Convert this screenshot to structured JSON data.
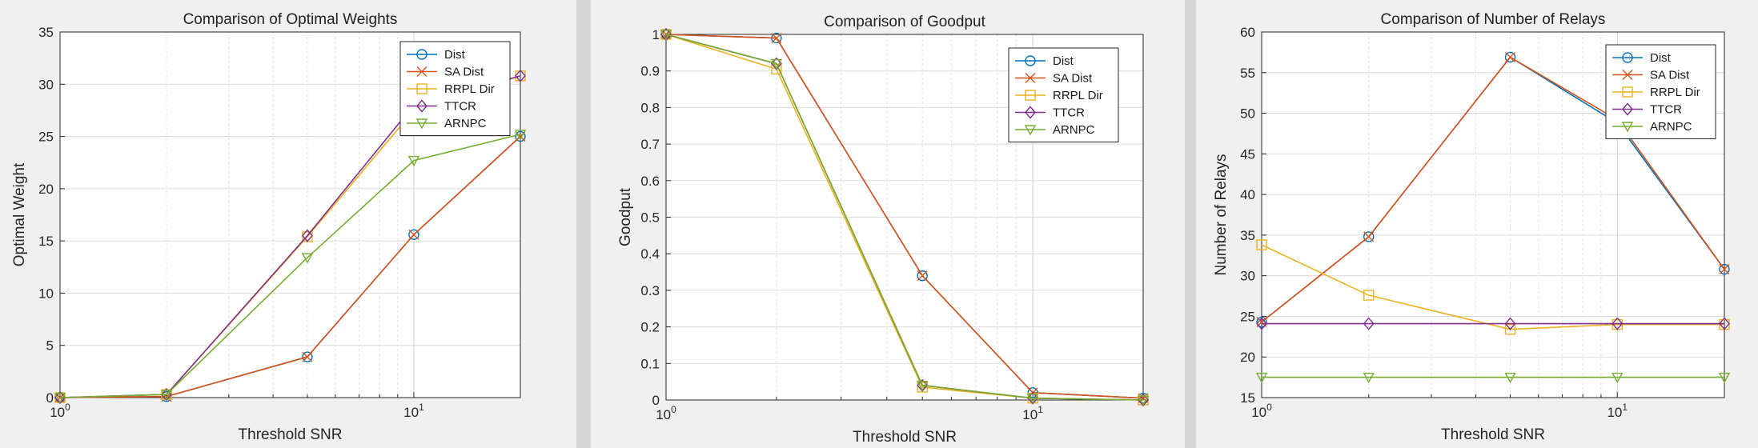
{
  "colors": {
    "Dist": "#0072bd",
    "SA Dist": "#d95319",
    "RRPL Dir": "#edb120",
    "TTCR": "#7e2f8e",
    "ARNPC": "#77ac30"
  },
  "chart_data": [
    {
      "type": "line",
      "title": "Comparison of Optimal Weights",
      "xlabel": "Threshold SNR",
      "ylabel": "Optimal Weight",
      "xscale": "log",
      "xlim": [
        1,
        20
      ],
      "ylim": [
        0,
        35
      ],
      "yticks": [
        0,
        5,
        10,
        15,
        20,
        25,
        30,
        35
      ],
      "grid": true,
      "legend_position": "top-right",
      "x": [
        1,
        2,
        5,
        10,
        20
      ],
      "series": [
        {
          "name": "Dist",
          "marker": "circle",
          "values": [
            0,
            0.1,
            3.9,
            15.6,
            25.0
          ]
        },
        {
          "name": "SA Dist",
          "marker": "x",
          "values": [
            0,
            0.1,
            3.9,
            15.6,
            25.0
          ]
        },
        {
          "name": "RRPL Dir",
          "marker": "square",
          "values": [
            0,
            0.3,
            15.4,
            27.5,
            30.8
          ]
        },
        {
          "name": "TTCR",
          "marker": "diamond",
          "values": [
            0,
            0.3,
            15.5,
            28.0,
            30.8
          ]
        },
        {
          "name": "ARNPC",
          "marker": "triangle-down",
          "values": [
            0,
            0.3,
            13.4,
            22.7,
            25.2
          ]
        }
      ]
    },
    {
      "type": "line",
      "title": "Comparison of Goodput",
      "xlabel": "Threshold SNR",
      "ylabel": "Goodput",
      "xscale": "log",
      "xlim": [
        1,
        20
      ],
      "ylim": [
        0,
        1
      ],
      "yticks": [
        0,
        0.1,
        0.2,
        0.3,
        0.4,
        0.5,
        0.6,
        0.7,
        0.8,
        0.9,
        1
      ],
      "grid": true,
      "legend_position": "top-right",
      "x": [
        1,
        2,
        5,
        10,
        20
      ],
      "series": [
        {
          "name": "Dist",
          "marker": "circle",
          "values": [
            1.0,
            0.99,
            0.34,
            0.02,
            0.005
          ]
        },
        {
          "name": "SA Dist",
          "marker": "x",
          "values": [
            1.0,
            0.99,
            0.34,
            0.02,
            0.005
          ]
        },
        {
          "name": "RRPL Dir",
          "marker": "square",
          "values": [
            1.0,
            0.905,
            0.035,
            0.005,
            0.0
          ]
        },
        {
          "name": "TTCR",
          "marker": "diamond",
          "values": [
            1.0,
            0.92,
            0.04,
            0.005,
            0.0
          ]
        },
        {
          "name": "ARNPC",
          "marker": "triangle-down",
          "values": [
            1.0,
            0.92,
            0.04,
            0.005,
            0.0
          ]
        }
      ]
    },
    {
      "type": "line",
      "title": "Comparison of Number of Relays",
      "xlabel": "Threshold SNR",
      "ylabel": "Number of Relays",
      "xscale": "log",
      "xlim": [
        1,
        20
      ],
      "ylim": [
        15,
        60
      ],
      "yticks": [
        15,
        20,
        25,
        30,
        35,
        40,
        45,
        50,
        55,
        60
      ],
      "grid": true,
      "legend_position": "top-right",
      "x": [
        1,
        2,
        5,
        10,
        20
      ],
      "series": [
        {
          "name": "Dist",
          "marker": "circle",
          "values": [
            24.3,
            34.8,
            56.9,
            48.8,
            30.8
          ]
        },
        {
          "name": "SA Dist",
          "marker": "x",
          "values": [
            24.3,
            34.8,
            56.9,
            49.2,
            30.8
          ]
        },
        {
          "name": "RRPL Dir",
          "marker": "square",
          "values": [
            33.8,
            27.6,
            23.4,
            24.0,
            24.0
          ]
        },
        {
          "name": "TTCR",
          "marker": "diamond",
          "values": [
            24.1,
            24.1,
            24.1,
            24.1,
            24.1
          ]
        },
        {
          "name": "ARNPC",
          "marker": "triangle-down",
          "values": [
            17.5,
            17.5,
            17.5,
            17.5,
            17.5
          ]
        }
      ]
    }
  ]
}
